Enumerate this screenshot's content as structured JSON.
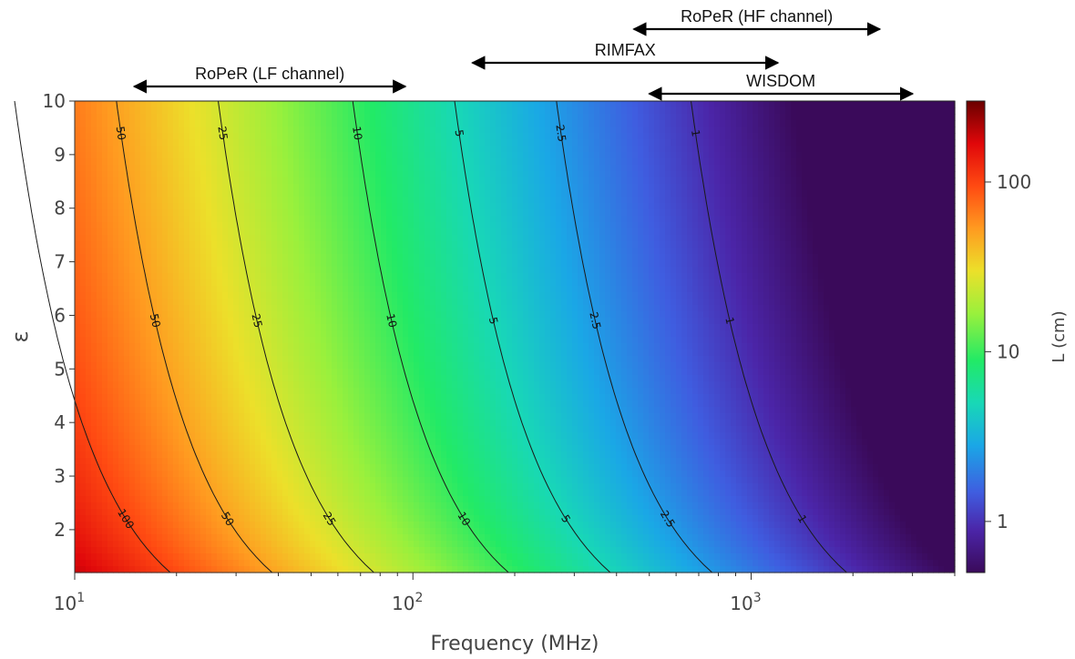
{
  "chart_data": {
    "type": "heatmap",
    "title": "",
    "xlabel": "Frequency (MHz)",
    "ylabel": "ε",
    "x_scale": "log",
    "xlim": [
      10,
      4000
    ],
    "ylim": [
      1.2,
      10
    ],
    "x_ticks": [
      {
        "value": 10,
        "base": "10",
        "exp": "1"
      },
      {
        "value": 100,
        "base": "10",
        "exp": "2"
      },
      {
        "value": 1000,
        "base": "10",
        "exp": "3"
      }
    ],
    "y_ticks": [
      "2",
      "3",
      "4",
      "5",
      "6",
      "7",
      "8",
      "9",
      "10"
    ],
    "colorbar": {
      "label": "L (cm)",
      "scale": "log",
      "range": [
        0.5,
        300
      ],
      "ticks": [
        "1",
        "10",
        "100"
      ]
    },
    "contours": [
      {
        "label": "100",
        "L": 100
      },
      {
        "label": "50",
        "L": 50
      },
      {
        "label": "25",
        "L": 25
      },
      {
        "label": "10",
        "L": 10
      },
      {
        "label": "5",
        "L": 5
      },
      {
        "label": "2.5",
        "L": 2.5
      },
      {
        "label": "1",
        "L": 1
      }
    ],
    "annotations": [
      {
        "label": "RoPeR (HF channel)",
        "fmin": 450,
        "fmax": 2400
      },
      {
        "label": "RIMFAX",
        "fmin": 150,
        "fmax": 1200
      },
      {
        "label": "RoPeR (LF channel)",
        "fmin": 15,
        "fmax": 95
      },
      {
        "label": "WISDOM",
        "fmin": 500,
        "fmax": 3000
      }
    ]
  }
}
